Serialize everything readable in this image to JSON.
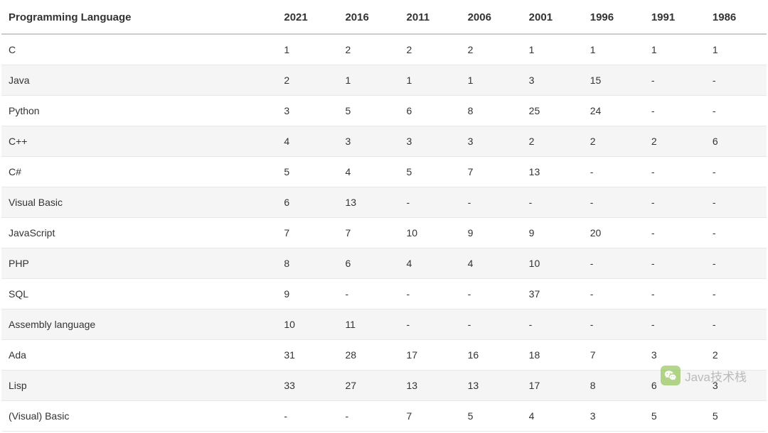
{
  "table": {
    "columns": [
      "Programming Language",
      "2021",
      "2016",
      "2011",
      "2006",
      "2001",
      "1996",
      "1991",
      "1986"
    ],
    "rows": [
      [
        "C",
        "1",
        "2",
        "2",
        "2",
        "1",
        "1",
        "1",
        "1"
      ],
      [
        "Java",
        "2",
        "1",
        "1",
        "1",
        "3",
        "15",
        "-",
        "-"
      ],
      [
        "Python",
        "3",
        "5",
        "6",
        "8",
        "25",
        "24",
        "-",
        "-"
      ],
      [
        "C++",
        "4",
        "3",
        "3",
        "3",
        "2",
        "2",
        "2",
        "6"
      ],
      [
        "C#",
        "5",
        "4",
        "5",
        "7",
        "13",
        "-",
        "-",
        "-"
      ],
      [
        "Visual Basic",
        "6",
        "13",
        "-",
        "-",
        "-",
        "-",
        "-",
        "-"
      ],
      [
        "JavaScript",
        "7",
        "7",
        "10",
        "9",
        "9",
        "20",
        "-",
        "-"
      ],
      [
        "PHP",
        "8",
        "6",
        "4",
        "4",
        "10",
        "-",
        "-",
        "-"
      ],
      [
        "SQL",
        "9",
        "-",
        "-",
        "-",
        "37",
        "-",
        "-",
        "-"
      ],
      [
        "Assembly language",
        "10",
        "11",
        "-",
        "-",
        "-",
        "-",
        "-",
        "-"
      ],
      [
        "Ada",
        "31",
        "28",
        "17",
        "16",
        "18",
        "7",
        "3",
        "2"
      ],
      [
        "Lisp",
        "33",
        "27",
        "13",
        "13",
        "17",
        "8",
        "6",
        "3"
      ],
      [
        "(Visual) Basic",
        "-",
        "-",
        "7",
        "5",
        "4",
        "3",
        "5",
        "5"
      ]
    ],
    "header_font_weight": "700",
    "header_font_size": 15,
    "body_font_size": 14,
    "text_color": "#333333",
    "row_even_bg": "#f5f5f5",
    "row_odd_bg": "#ffffff",
    "header_border_color": "#cccccc",
    "row_border_color": "#e8e8e8",
    "first_col_width_pct": 36,
    "other_col_width_pct": 8
  },
  "watermark": {
    "text": "Java技术栈",
    "text_color": "#8a8a8a",
    "icon_bg": "#7ab82e",
    "opacity": 0.55
  }
}
